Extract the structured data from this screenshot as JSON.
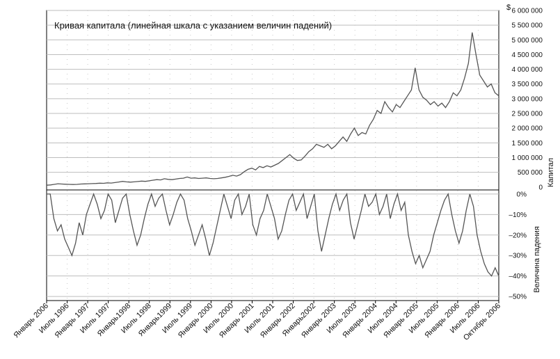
{
  "chart_data": {
    "type": "line",
    "title": "Кривая капитала (линейная шкала с указанием величин падений)",
    "x_tick_labels": [
      "Январь 2006",
      "Июль 1996",
      "Январь 1997",
      "Июль 1997",
      "Январь1998",
      "Июль 1998",
      "Январь1999",
      "Июль 1999",
      "Январь 2000",
      "Июль 2000",
      "Январь 2001",
      "Июль 2001",
      "Январь 2002",
      "Январь2002",
      "Январь 2003",
      "Июль 2003",
      "Январь 2004",
      "Июль 2004",
      "Январь 2005",
      "Июль 2005",
      "Январь 2006",
      "Июль 2006",
      "Октябрь 2006"
    ],
    "panels": {
      "equity": {
        "ylabel": "Капитал",
        "unit_label": "$",
        "ylim": [
          -100000,
          6000000
        ],
        "y_ticks": [
          0,
          500000,
          1000000,
          1500000,
          2000000,
          2500000,
          3000000,
          3500000,
          4000000,
          4500000,
          5000000,
          5500000,
          6000000
        ],
        "y_tick_labels": [
          "0",
          "500 000",
          "1 000 000",
          "1 500 000",
          "2 000 000",
          "2 500 000",
          "3 000 000",
          "3 500 000",
          "4 000 000",
          "4 500 000",
          "5 000 000",
          "5 500 000",
          "6 000 000"
        ],
        "series": [
          {
            "color": "#555555",
            "values": [
              60000,
              70000,
              90000,
              110000,
              100000,
              95000,
              90000,
              85000,
              90000,
              100000,
              105000,
              110000,
              115000,
              120000,
              130000,
              125000,
              140000,
              135000,
              150000,
              170000,
              190000,
              175000,
              165000,
              175000,
              185000,
              200000,
              190000,
              210000,
              230000,
              250000,
              240000,
              280000,
              260000,
              250000,
              270000,
              290000,
              300000,
              340000,
              300000,
              310000,
              290000,
              300000,
              310000,
              290000,
              280000,
              290000,
              310000,
              330000,
              360000,
              400000,
              370000,
              420000,
              520000,
              600000,
              640000,
              580000,
              700000,
              660000,
              720000,
              680000,
              740000,
              800000,
              900000,
              1000000,
              1100000,
              980000,
              900000,
              920000,
              1050000,
              1200000,
              1300000,
              1450000,
              1400000,
              1350000,
              1450000,
              1300000,
              1400000,
              1550000,
              1700000,
              1550000,
              1800000,
              2000000,
              1750000,
              1850000,
              1800000,
              2100000,
              2300000,
              2600000,
              2500000,
              2900000,
              2700000,
              2550000,
              2800000,
              2700000,
              2900000,
              3100000,
              3300000,
              4050000,
              3300000,
              3050000,
              2950000,
              2800000,
              2900000,
              2750000,
              2850000,
              2700000,
              2900000,
              3200000,
              3100000,
              3300000,
              3700000,
              4200000,
              5250000,
              4500000,
              3800000,
              3600000,
              3400000,
              3500000,
              3200000,
              3100000
            ]
          }
        ]
      },
      "drawdown": {
        "ylabel": "Величина падения",
        "ylim": [
          -52,
          2
        ],
        "y_ticks": [
          0,
          -10,
          -20,
          -30,
          -40,
          -50
        ],
        "y_tick_labels": [
          "0%",
          "–10%",
          "–20%",
          "–30%",
          "–40%",
          "–50%"
        ],
        "series": [
          {
            "color": "#555555",
            "values": [
              0,
              0,
              -12,
              -18,
              -15,
              -22,
              -26,
              -30,
              -24,
              -14,
              -20,
              -10,
              -5,
              0,
              -5,
              -12,
              -8,
              0,
              -3,
              -14,
              -8,
              -2,
              0,
              -10,
              -18,
              -25,
              -20,
              -12,
              -5,
              0,
              -6,
              -2,
              0,
              -8,
              -15,
              -10,
              -4,
              0,
              -3,
              -12,
              -18,
              -25,
              -20,
              -15,
              -22,
              -30,
              -24,
              -16,
              -8,
              0,
              -6,
              -12,
              -3,
              0,
              -10,
              -6,
              0,
              -15,
              -20,
              -12,
              -8,
              0,
              -6,
              -12,
              -22,
              -18,
              -10,
              -3,
              0,
              -8,
              -4,
              0,
              -12,
              -6,
              0,
              -18,
              -28,
              -20,
              -12,
              -5,
              0,
              -8,
              -3,
              0,
              -14,
              -22,
              -15,
              -8,
              0,
              -6,
              -4,
              0,
              -10,
              -6,
              0,
              -12,
              -5,
              0,
              -8,
              -4,
              -20,
              -28,
              -34,
              -30,
              -36,
              -32,
              -28,
              -20,
              -14,
              -8,
              -3,
              0,
              -10,
              -18,
              -24,
              -18,
              -8,
              0,
              -6,
              -20,
              -28,
              -34,
              -38,
              -40,
              -36,
              -40
            ]
          }
        ]
      }
    }
  }
}
